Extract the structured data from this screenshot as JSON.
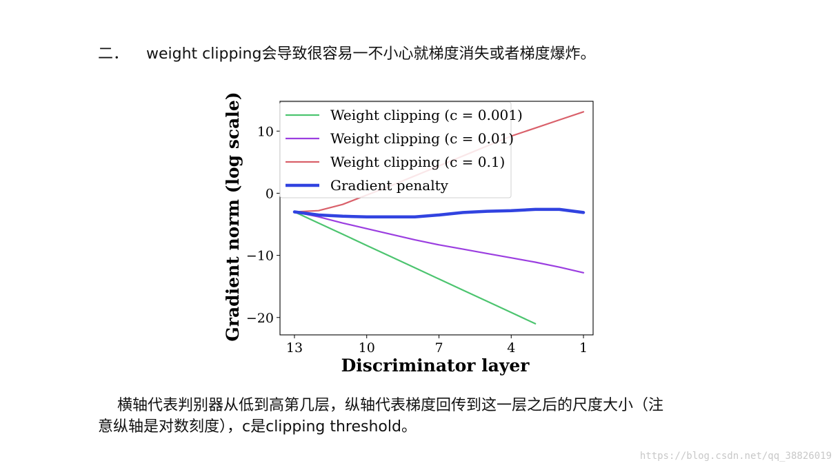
{
  "heading": {
    "number": "二．",
    "text": "weight clipping会导致很容易一不小心就梯度消失或者梯度爆炸。"
  },
  "caption": {
    "line1": "横轴代表判别器从低到高第几层，纵轴代表梯度回传到这一层之后的尺度大小（注",
    "line2": "意纵轴是对数刻度），c是clipping threshold。"
  },
  "watermark": "https://blog.csdn.net/qq_38826019",
  "chart_data": {
    "type": "line",
    "title": "",
    "xlabel": "Discriminator layer",
    "ylabel": "Gradient norm (log scale)",
    "x_ticks": [
      13,
      10,
      7,
      4,
      1
    ],
    "y_ticks": [
      10,
      0,
      -10,
      -20
    ],
    "y_tick_labels": [
      "10",
      "0",
      "−10",
      "−20"
    ],
    "xlim": [
      13.6,
      0.6
    ],
    "ylim": [
      -22.8,
      14.8
    ],
    "x_reversed": true,
    "legend_position": "top-left",
    "series": [
      {
        "name": "Weight clipping (c = 0.001)",
        "color": "#4cc46f",
        "x": [
          13,
          12,
          11,
          10,
          9,
          8,
          7,
          6,
          5,
          4,
          3
        ],
        "y": [
          -3.0,
          -4.8,
          -6.6,
          -8.4,
          -10.2,
          -12.0,
          -13.8,
          -15.6,
          -17.4,
          -19.2,
          -21.0
        ]
      },
      {
        "name": "Weight clipping (c = 0.01)",
        "color": "#9b3ee0",
        "x": [
          13,
          12,
          11,
          10,
          9,
          8,
          7,
          6,
          5,
          4,
          3,
          2,
          1
        ],
        "y": [
          -3.0,
          -3.8,
          -4.8,
          -5.7,
          -6.6,
          -7.5,
          -8.3,
          -9.0,
          -9.7,
          -10.4,
          -11.1,
          -11.9,
          -12.8
        ]
      },
      {
        "name": "Weight clipping (c = 0.1)",
        "color": "#d9606a",
        "x": [
          13,
          12,
          11,
          10,
          9,
          8,
          7,
          6,
          5,
          4,
          3,
          2,
          1
        ],
        "y": [
          -3.0,
          -2.8,
          -1.8,
          -0.3,
          1.2,
          2.8,
          4.4,
          6.0,
          7.6,
          9.2,
          10.5,
          11.8,
          13.1
        ]
      },
      {
        "name": "Gradient penalty",
        "color": "#3143e0",
        "x": [
          13,
          12,
          11,
          10,
          9,
          8,
          7,
          6,
          5,
          4,
          3,
          2,
          1
        ],
        "y": [
          -3.0,
          -3.5,
          -3.7,
          -3.8,
          -3.8,
          -3.8,
          -3.5,
          -3.1,
          -2.9,
          -2.8,
          -2.6,
          -2.6,
          -3.1
        ]
      }
    ]
  }
}
